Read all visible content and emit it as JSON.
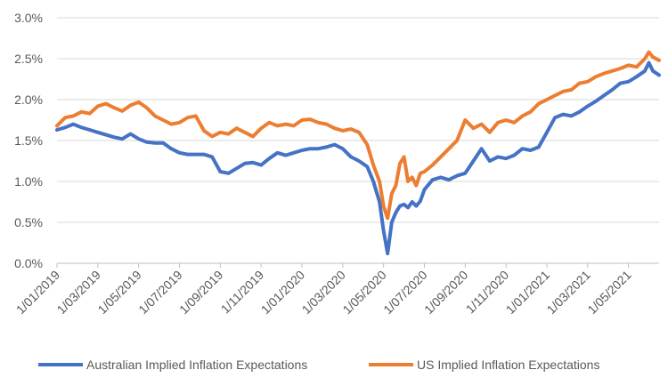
{
  "chart_data": {
    "type": "line",
    "title": "",
    "xlabel": "",
    "ylabel": "",
    "ylim": [
      0,
      3.0
    ],
    "y_ticks": [
      "0.0%",
      "0.5%",
      "1.0%",
      "1.5%",
      "2.0%",
      "2.5%",
      "3.0%"
    ],
    "y_tick_values": [
      0,
      0.5,
      1.0,
      1.5,
      2.0,
      2.5,
      3.0
    ],
    "x_ticks": [
      "1/01/2019",
      "1/03/2019",
      "1/05/2019",
      "1/07/2019",
      "1/09/2019",
      "1/11/2019",
      "1/01/2020",
      "1/03/2020",
      "1/05/2020",
      "1/07/2020",
      "1/09/2020",
      "1/11/2020",
      "1/01/2021",
      "1/03/2021",
      "1/05/2021"
    ],
    "x_unit": "months since 1/01/2019",
    "xlim": [
      0,
      29.5
    ],
    "grid": true,
    "legend_position": "bottom",
    "series": [
      {
        "name": "Australian Implied Inflation Expectations",
        "color": "#4472C4",
        "x": [
          0,
          0.4,
          0.8,
          1.2,
          1.6,
          2.0,
          2.4,
          2.8,
          3.2,
          3.6,
          4.0,
          4.4,
          4.8,
          5.2,
          5.6,
          6.0,
          6.4,
          6.8,
          7.2,
          7.6,
          8.0,
          8.4,
          8.8,
          9.2,
          9.6,
          10.0,
          10.4,
          10.8,
          11.2,
          11.6,
          12.0,
          12.4,
          12.8,
          13.2,
          13.6,
          14.0,
          14.4,
          14.8,
          15.2,
          15.5,
          15.8,
          16.0,
          16.2,
          16.4,
          16.6,
          16.8,
          17.0,
          17.2,
          17.4,
          17.6,
          17.8,
          18.0,
          18.4,
          18.8,
          19.2,
          19.6,
          20.0,
          20.4,
          20.8,
          21.2,
          21.6,
          22.0,
          22.4,
          22.8,
          23.2,
          23.6,
          24.0,
          24.4,
          24.8,
          25.2,
          25.6,
          26.0,
          26.4,
          26.8,
          27.2,
          27.6,
          28.0,
          28.4,
          28.8,
          29.0,
          29.2,
          29.5
        ],
        "values": [
          1.63,
          1.66,
          1.7,
          1.66,
          1.63,
          1.6,
          1.57,
          1.54,
          1.52,
          1.58,
          1.52,
          1.48,
          1.47,
          1.47,
          1.4,
          1.35,
          1.33,
          1.33,
          1.33,
          1.3,
          1.12,
          1.1,
          1.16,
          1.22,
          1.23,
          1.2,
          1.28,
          1.35,
          1.32,
          1.35,
          1.38,
          1.4,
          1.4,
          1.42,
          1.45,
          1.4,
          1.3,
          1.25,
          1.18,
          1.0,
          0.75,
          0.4,
          0.12,
          0.5,
          0.62,
          0.7,
          0.72,
          0.68,
          0.75,
          0.7,
          0.76,
          0.9,
          1.02,
          1.05,
          1.02,
          1.07,
          1.1,
          1.25,
          1.4,
          1.25,
          1.3,
          1.28,
          1.32,
          1.4,
          1.38,
          1.42,
          1.6,
          1.78,
          1.82,
          1.8,
          1.85,
          1.92,
          1.98,
          2.05,
          2.12,
          2.2,
          2.22,
          2.28,
          2.35,
          2.45,
          2.35,
          2.3
        ]
      },
      {
        "name": "US Implied Inflation Expectations",
        "color": "#ED7D31",
        "x": [
          0,
          0.4,
          0.8,
          1.2,
          1.6,
          2.0,
          2.4,
          2.8,
          3.2,
          3.6,
          4.0,
          4.4,
          4.8,
          5.2,
          5.6,
          6.0,
          6.4,
          6.8,
          7.2,
          7.6,
          8.0,
          8.4,
          8.8,
          9.2,
          9.6,
          10.0,
          10.4,
          10.8,
          11.2,
          11.6,
          12.0,
          12.4,
          12.8,
          13.2,
          13.6,
          14.0,
          14.4,
          14.8,
          15.2,
          15.5,
          15.8,
          16.0,
          16.2,
          16.4,
          16.6,
          16.8,
          17.0,
          17.2,
          17.4,
          17.6,
          17.8,
          18.0,
          18.4,
          18.8,
          19.2,
          19.6,
          20.0,
          20.4,
          20.8,
          21.2,
          21.6,
          22.0,
          22.4,
          22.8,
          23.2,
          23.6,
          24.0,
          24.4,
          24.8,
          25.2,
          25.6,
          26.0,
          26.4,
          26.8,
          27.2,
          27.6,
          28.0,
          28.4,
          28.8,
          29.0,
          29.2,
          29.5
        ],
        "values": [
          1.68,
          1.78,
          1.8,
          1.85,
          1.83,
          1.92,
          1.95,
          1.9,
          1.86,
          1.93,
          1.97,
          1.9,
          1.8,
          1.75,
          1.7,
          1.72,
          1.78,
          1.8,
          1.62,
          1.55,
          1.6,
          1.58,
          1.65,
          1.6,
          1.55,
          1.65,
          1.72,
          1.68,
          1.7,
          1.68,
          1.75,
          1.76,
          1.72,
          1.7,
          1.65,
          1.62,
          1.64,
          1.6,
          1.45,
          1.2,
          1.0,
          0.7,
          0.55,
          0.85,
          0.95,
          1.22,
          1.3,
          1.0,
          1.05,
          0.95,
          1.1,
          1.12,
          1.2,
          1.3,
          1.4,
          1.5,
          1.75,
          1.65,
          1.7,
          1.6,
          1.72,
          1.75,
          1.72,
          1.8,
          1.85,
          1.95,
          2.0,
          2.05,
          2.1,
          2.12,
          2.2,
          2.22,
          2.28,
          2.32,
          2.35,
          2.38,
          2.42,
          2.4,
          2.5,
          2.58,
          2.52,
          2.48
        ]
      }
    ]
  }
}
